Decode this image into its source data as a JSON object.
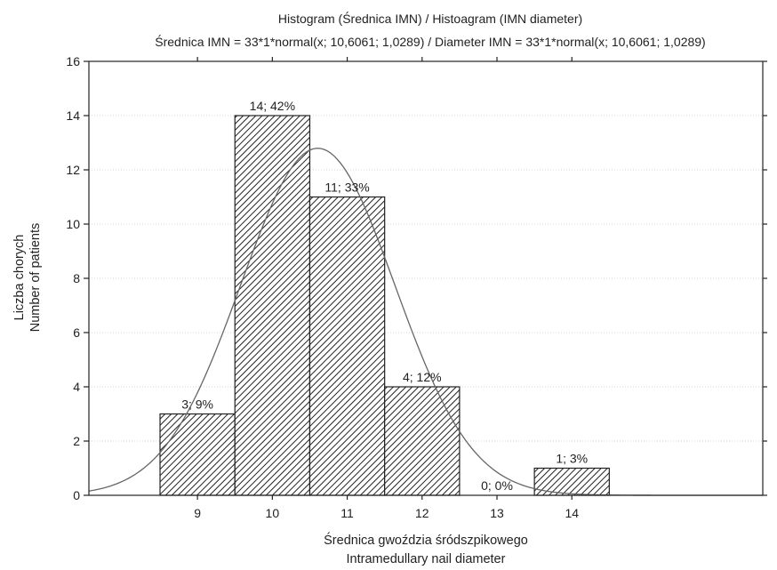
{
  "chart_data": {
    "type": "bar",
    "title": "Histogram (Średnica IMN) / Histoagram (IMN diameter)",
    "subtitle": "Średnica IMN = 33*1*normal(x; 10,6061; 1,0289) / Diameter IMN = 33*1*normal(x; 10,6061; 1,0289)",
    "xlabel": [
      "Średnica gwoździa śródszpikowego",
      "Intramedullary nail diameter"
    ],
    "ylabel": [
      "Liczba chorych",
      "Number of patients"
    ],
    "categories": [
      "9",
      "10",
      "11",
      "12",
      "13",
      "14"
    ],
    "values": [
      3,
      14,
      11,
      4,
      0,
      1
    ],
    "data_labels": [
      "3; 9%",
      "14; 42%",
      "11; 33%",
      "4; 12%",
      "0; 0%",
      "1; 3%"
    ],
    "ylim": [
      0,
      16
    ],
    "yticks": [
      "0",
      "2",
      "4",
      "6",
      "8",
      "10",
      "12",
      "14",
      "16"
    ],
    "grid": true,
    "fit_curve": {
      "distribution": "normal",
      "n": 33,
      "bin_width": 1,
      "mean": 10.6061,
      "sd": 1.0289
    },
    "colors": {
      "bars": "#222222",
      "curve": "#666666",
      "grid": "#c8c8c8"
    }
  }
}
